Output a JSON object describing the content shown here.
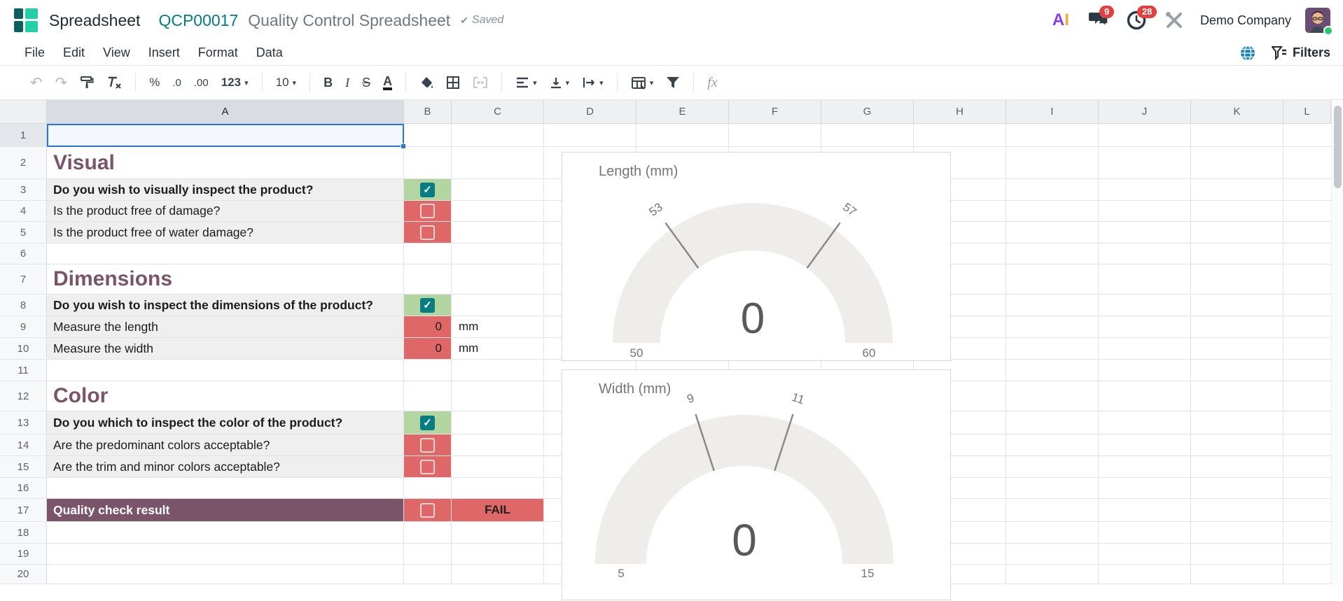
{
  "header": {
    "app_title": "Spreadsheet",
    "doc_ref": "QCP00017",
    "doc_title": "Quality Control Spreadsheet",
    "saved_check": "✔",
    "saved_label": "Saved",
    "ai_a": "A",
    "ai_i": "I",
    "messages_badge": "9",
    "activities_badge": "28",
    "company": "Demo Company"
  },
  "menu": {
    "items": [
      "File",
      "Edit",
      "View",
      "Insert",
      "Format",
      "Data"
    ],
    "filters_label": "Filters"
  },
  "toolbar": {
    "undo": "↶",
    "redo": "↷",
    "percent": "%",
    "dec_less": ".0",
    "dec_more": ".00",
    "format123": "123",
    "font_size": "10",
    "bold": "B",
    "italic": "I",
    "strikethrough": "S",
    "text_color": "A",
    "fx": "fx",
    "caret": "▾"
  },
  "grid": {
    "columns": [
      "A",
      "B",
      "C",
      "D",
      "E",
      "F",
      "G",
      "H",
      "I",
      "J",
      "K",
      "L"
    ],
    "rows": [
      "1",
      "2",
      "3",
      "4",
      "5",
      "6",
      "7",
      "8",
      "9",
      "10",
      "11",
      "12",
      "13",
      "14",
      "15",
      "16",
      "17",
      "18",
      "19",
      "20"
    ]
  },
  "rows": {
    "r2": {
      "a": "Visual"
    },
    "r3": {
      "a": "Do you wish to visually inspect the product?",
      "b": "checked"
    },
    "r4": {
      "a": "Is the product free of damage?",
      "b": "unchecked"
    },
    "r5": {
      "a": "Is the product free of water damage?",
      "b": "unchecked"
    },
    "r7": {
      "a": "Dimensions"
    },
    "r8": {
      "a": "Do you wish to inspect the dimensions of the product?",
      "b": "checked"
    },
    "r9": {
      "a": "Measure the length",
      "b": "0",
      "c": "mm"
    },
    "r10": {
      "a": "Measure the width",
      "b": "0",
      "c": "mm"
    },
    "r12": {
      "a": "Color"
    },
    "r13": {
      "a": "Do you which to inspect the color of the product?",
      "b": "checked"
    },
    "r14": {
      "a": "Are the predominant colors acceptable?",
      "b": "unchecked"
    },
    "r15": {
      "a": "Are the trim and minor colors acceptable?",
      "b": "unchecked"
    },
    "r17": {
      "a": "Quality check result",
      "b": "unchecked",
      "c": "FAIL"
    }
  },
  "colors": {
    "accent_teal": "#017e84",
    "section_plum": "#7a5468",
    "pass_green": "#b2d5a2",
    "fail_red": "#e06767",
    "checkbox_teal": "#077d82",
    "selection_blue": "#2574e8",
    "badge_red": "#e0403f",
    "gauge_arc": "#efedea"
  },
  "chart_data": [
    {
      "type": "gauge",
      "title": "Length (mm)",
      "min": 50,
      "max": 60,
      "min_label": "50",
      "max_label": "60",
      "ticks": [
        53,
        57
      ],
      "value": "0",
      "arc_color": "#efedea",
      "text_color": "#757575"
    },
    {
      "type": "gauge",
      "title": "Width (mm)",
      "min": 5,
      "max": 15,
      "min_label": "5",
      "max_label": "15",
      "ticks": [
        9,
        11
      ],
      "value": "0",
      "arc_color": "#efedea",
      "text_color": "#757575"
    }
  ]
}
